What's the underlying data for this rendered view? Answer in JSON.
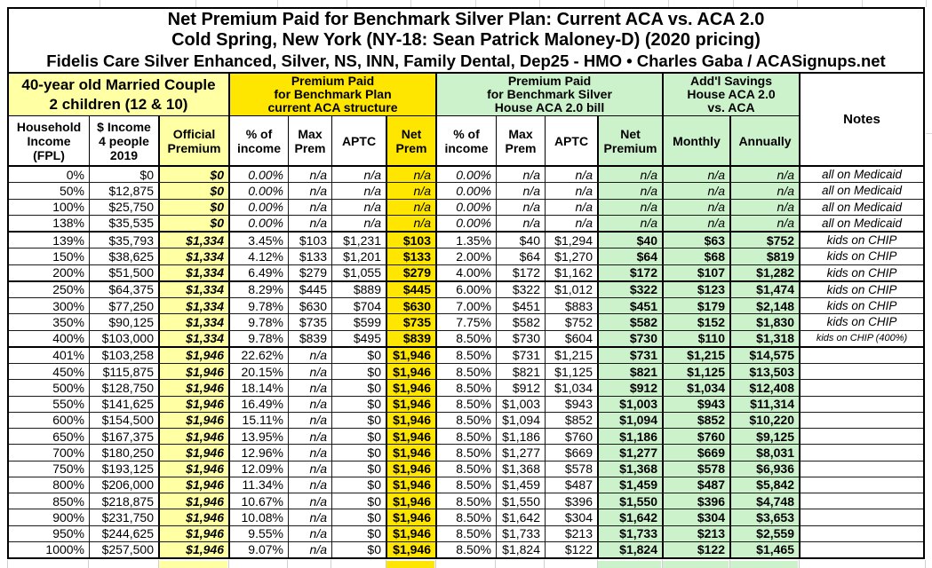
{
  "colors": {
    "light_yellow": "#ffffa3",
    "bright_yellow": "#ffe600",
    "light_green": "#ccf2cc",
    "border": "#000000",
    "gridline": "#d9d9d9"
  },
  "chart_data": {
    "type": "table",
    "title": "Net Premium Paid for Benchmark Silver Plan: Current ACA vs. ACA 2.0",
    "subtitle": "Cold Spring, New York (NY-18: Sean Patrick Maloney-D) (2020 pricing)",
    "subtitle2": "Fidelis Care Silver Enhanced, Silver, NS, INN, Family Dental, Dep25 - HMO • Charles Gaba / ACASignups.net",
    "group_headers": [
      {
        "label": "40-year old Married Couple\n2 children (12 & 10)",
        "cols": 3,
        "bg": "light_yellow"
      },
      {
        "label": "Premium Paid\nfor Benchmark Plan\ncurrent ACA structure",
        "cols": 4,
        "bg": "bright_yellow"
      },
      {
        "label": "Premium Paid\nfor Benchmark Silver\nHouse ACA 2.0 bill",
        "cols": 4,
        "bg": "light_green"
      },
      {
        "label": "Add'l Savings\nHouse ACA 2.0\nvs. ACA",
        "cols": 2,
        "bg": "light_green"
      },
      {
        "label": "Notes",
        "cols": 1,
        "bg": null
      }
    ],
    "columns": [
      "Household\nIncome\n(FPL)",
      "$ Income\n4 people\n2019",
      "Official\nPremium",
      "% of\nincome",
      "Max\nPrem",
      "APTC",
      "Net\nPrem",
      "% of\nincome",
      "Max\nPrem",
      "APTC",
      "Net\nPremium",
      "Monthly",
      "Annually",
      "Notes"
    ],
    "column_bg": [
      null,
      null,
      "light_yellow",
      null,
      null,
      null,
      "bright_yellow",
      null,
      null,
      null,
      "light_green",
      "light_green",
      "light_green",
      null
    ],
    "rows": [
      [
        "0%",
        "$0",
        "$0",
        "0.00%",
        "n/a",
        "n/a",
        "n/a",
        "0.00%",
        "n/a",
        "n/a",
        "n/a",
        "n/a",
        "n/a",
        "all on Medicaid"
      ],
      [
        "50%",
        "$12,875",
        "$0",
        "0.00%",
        "n/a",
        "n/a",
        "n/a",
        "0.00%",
        "n/a",
        "n/a",
        "n/a",
        "n/a",
        "n/a",
        "all on Medicaid"
      ],
      [
        "100%",
        "$25,750",
        "$0",
        "0.00%",
        "n/a",
        "n/a",
        "n/a",
        "0.00%",
        "n/a",
        "n/a",
        "n/a",
        "n/a",
        "n/a",
        "all on Medicaid"
      ],
      [
        "138%",
        "$35,535",
        "$0",
        "0.00%",
        "n/a",
        "n/a",
        "n/a",
        "0.00%",
        "n/a",
        "n/a",
        "n/a",
        "n/a",
        "n/a",
        "all on Medicaid"
      ],
      [
        "139%",
        "$35,793",
        "$1,334",
        "3.45%",
        "$103",
        "$1,231",
        "$103",
        "1.35%",
        "$40",
        "$1,294",
        "$40",
        "$63",
        "$752",
        "kids on CHIP"
      ],
      [
        "150%",
        "$38,625",
        "$1,334",
        "4.12%",
        "$133",
        "$1,201",
        "$133",
        "2.00%",
        "$64",
        "$1,270",
        "$64",
        "$68",
        "$819",
        "kids on CHIP"
      ],
      [
        "200%",
        "$51,500",
        "$1,334",
        "6.49%",
        "$279",
        "$1,055",
        "$279",
        "4.00%",
        "$172",
        "$1,162",
        "$172",
        "$107",
        "$1,282",
        "kids on CHIP"
      ],
      [
        "250%",
        "$64,375",
        "$1,334",
        "8.29%",
        "$445",
        "$889",
        "$445",
        "6.00%",
        "$322",
        "$1,012",
        "$322",
        "$123",
        "$1,474",
        "kids on CHIP"
      ],
      [
        "300%",
        "$77,250",
        "$1,334",
        "9.78%",
        "$630",
        "$704",
        "$630",
        "7.00%",
        "$451",
        "$883",
        "$451",
        "$179",
        "$2,148",
        "kids on CHIP"
      ],
      [
        "350%",
        "$90,125",
        "$1,334",
        "9.78%",
        "$735",
        "$599",
        "$735",
        "7.75%",
        "$582",
        "$752",
        "$582",
        "$152",
        "$1,830",
        "kids on CHIP"
      ],
      [
        "400%",
        "$103,000",
        "$1,334",
        "9.78%",
        "$839",
        "$495",
        "$839",
        "8.50%",
        "$730",
        "$604",
        "$730",
        "$110",
        "$1,318",
        "kids on CHIP (400%)"
      ],
      [
        "401%",
        "$103,258",
        "$1,946",
        "22.62%",
        "n/a",
        "$0",
        "$1,946",
        "8.50%",
        "$731",
        "$1,215",
        "$731",
        "$1,215",
        "$14,575",
        ""
      ],
      [
        "450%",
        "$115,875",
        "$1,946",
        "20.15%",
        "n/a",
        "$0",
        "$1,946",
        "8.50%",
        "$821",
        "$1,125",
        "$821",
        "$1,125",
        "$13,503",
        ""
      ],
      [
        "500%",
        "$128,750",
        "$1,946",
        "18.14%",
        "n/a",
        "$0",
        "$1,946",
        "8.50%",
        "$912",
        "$1,034",
        "$912",
        "$1,034",
        "$12,408",
        ""
      ],
      [
        "550%",
        "$141,625",
        "$1,946",
        "16.49%",
        "n/a",
        "$0",
        "$1,946",
        "8.50%",
        "$1,003",
        "$943",
        "$1,003",
        "$943",
        "$11,314",
        ""
      ],
      [
        "600%",
        "$154,500",
        "$1,946",
        "15.11%",
        "n/a",
        "$0",
        "$1,946",
        "8.50%",
        "$1,094",
        "$852",
        "$1,094",
        "$852",
        "$10,220",
        ""
      ],
      [
        "650%",
        "$167,375",
        "$1,946",
        "13.95%",
        "n/a",
        "$0",
        "$1,946",
        "8.50%",
        "$1,186",
        "$760",
        "$1,186",
        "$760",
        "$9,125",
        ""
      ],
      [
        "700%",
        "$180,250",
        "$1,946",
        "12.96%",
        "n/a",
        "$0",
        "$1,946",
        "8.50%",
        "$1,277",
        "$669",
        "$1,277",
        "$669",
        "$8,031",
        ""
      ],
      [
        "750%",
        "$193,125",
        "$1,946",
        "12.09%",
        "n/a",
        "$0",
        "$1,946",
        "8.50%",
        "$1,368",
        "$578",
        "$1,368",
        "$578",
        "$6,936",
        ""
      ],
      [
        "800%",
        "$206,000",
        "$1,946",
        "11.34%",
        "n/a",
        "$0",
        "$1,946",
        "8.50%",
        "$1,459",
        "$487",
        "$1,459",
        "$487",
        "$5,842",
        ""
      ],
      [
        "850%",
        "$218,875",
        "$1,946",
        "10.67%",
        "n/a",
        "$0",
        "$1,946",
        "8.50%",
        "$1,550",
        "$396",
        "$1,550",
        "$396",
        "$4,748",
        ""
      ],
      [
        "900%",
        "$231,750",
        "$1,946",
        "10.08%",
        "n/a",
        "$0",
        "$1,946",
        "8.50%",
        "$1,642",
        "$304",
        "$1,642",
        "$304",
        "$3,653",
        ""
      ],
      [
        "950%",
        "$244,625",
        "$1,946",
        "9.55%",
        "n/a",
        "$0",
        "$1,946",
        "8.50%",
        "$1,733",
        "$213",
        "$1,733",
        "$213",
        "$2,559",
        ""
      ],
      [
        "1000%",
        "$257,500",
        "$1,946",
        "9.07%",
        "n/a",
        "$0",
        "$1,946",
        "8.50%",
        "$1,824",
        "$122",
        "$1,824",
        "$122",
        "$1,465",
        ""
      ]
    ],
    "separator_after_rows": [
      3,
      6,
      10
    ],
    "na_text": "n/a"
  }
}
